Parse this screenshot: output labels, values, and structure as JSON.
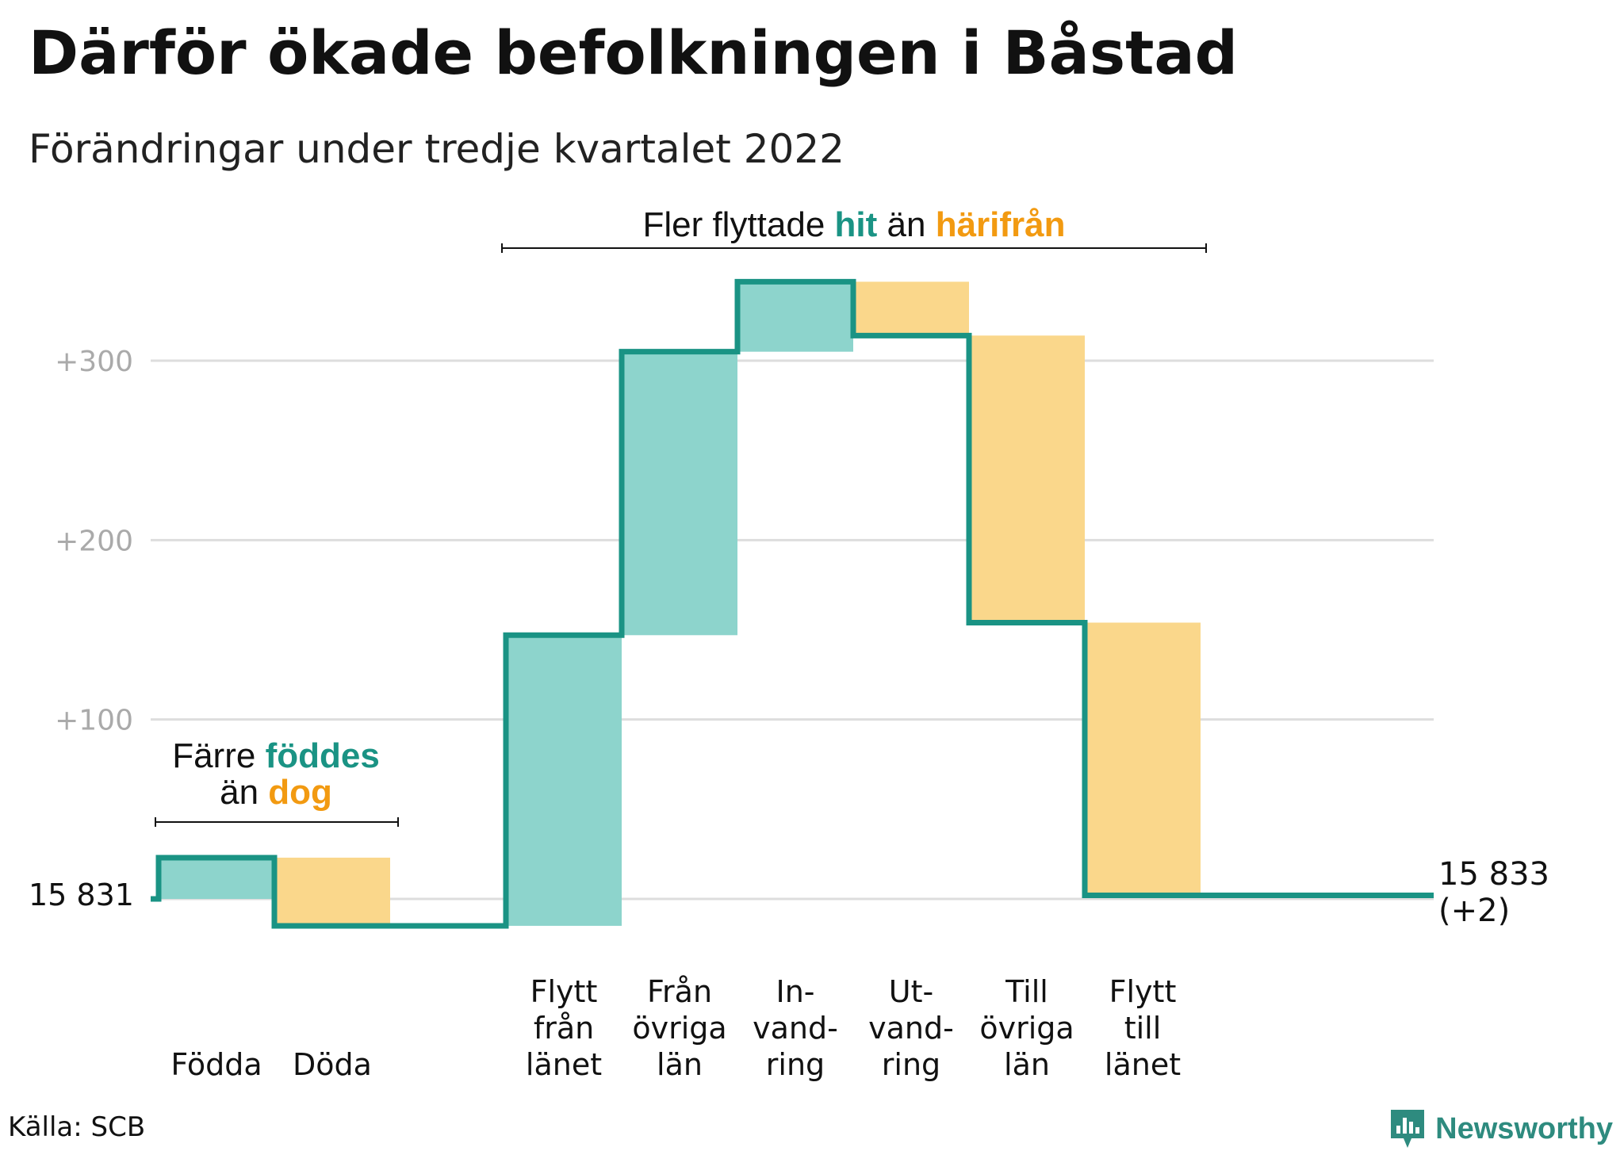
{
  "title": "Därför ökade befolkningen i Båstad",
  "subtitle": "Förändringar under tredje kvartalet 2022",
  "source": "Källa: SCB",
  "brand": {
    "name": "Newsworthy",
    "icon": "bar-chart-logo-icon"
  },
  "colors": {
    "increase_fill": "#8dd4cc",
    "decrease_fill": "#fad78b",
    "line": "#1a9384",
    "accent_teal": "#1a9384",
    "accent_orange": "#f29a11",
    "grid": "#dddddd",
    "tick_text": "#aaaaaa"
  },
  "annotations": {
    "natural": {
      "line1_prefix": "Färre ",
      "line1_highlight": "föddes",
      "line2_prefix": "än ",
      "line2_highlight": "dog"
    },
    "migration": {
      "prefix": "Fler flyttade ",
      "highlight1": "hit",
      "middle": " än ",
      "highlight2": "härifrån"
    }
  },
  "chart_data": {
    "type": "waterfall",
    "base_value": 15831,
    "start_label": "15 831",
    "end_label_line1": "15 833",
    "end_label_line2": "(+2)",
    "ylim": [
      0,
      345
    ],
    "yticks": [
      100,
      200,
      300
    ],
    "ytick_labels": [
      "+100",
      "+200",
      "+300"
    ],
    "grid": true,
    "steps": [
      {
        "label_lines": [
          "Födda"
        ],
        "change": 23,
        "kind": "increase"
      },
      {
        "label_lines": [
          "Döda"
        ],
        "change": -38,
        "kind": "decrease"
      },
      {
        "label_lines": [
          "",
          "",
          ""
        ],
        "change": 0,
        "kind": "gap"
      },
      {
        "label_lines": [
          "Flytt",
          "från",
          "länet"
        ],
        "change": 162,
        "kind": "increase"
      },
      {
        "label_lines": [
          "Från",
          "övriga",
          "län"
        ],
        "change": 158,
        "kind": "increase"
      },
      {
        "label_lines": [
          "In-",
          "vand-",
          "ring"
        ],
        "change": 39,
        "kind": "increase"
      },
      {
        "label_lines": [
          "Ut-",
          "vand-",
          "ring"
        ],
        "change": -30,
        "kind": "decrease"
      },
      {
        "label_lines": [
          "Till",
          "övriga",
          "län"
        ],
        "change": -160,
        "kind": "decrease"
      },
      {
        "label_lines": [
          "Flytt",
          "till",
          "länet"
        ],
        "change": -152,
        "kind": "decrease"
      }
    ],
    "end_value": 2
  }
}
